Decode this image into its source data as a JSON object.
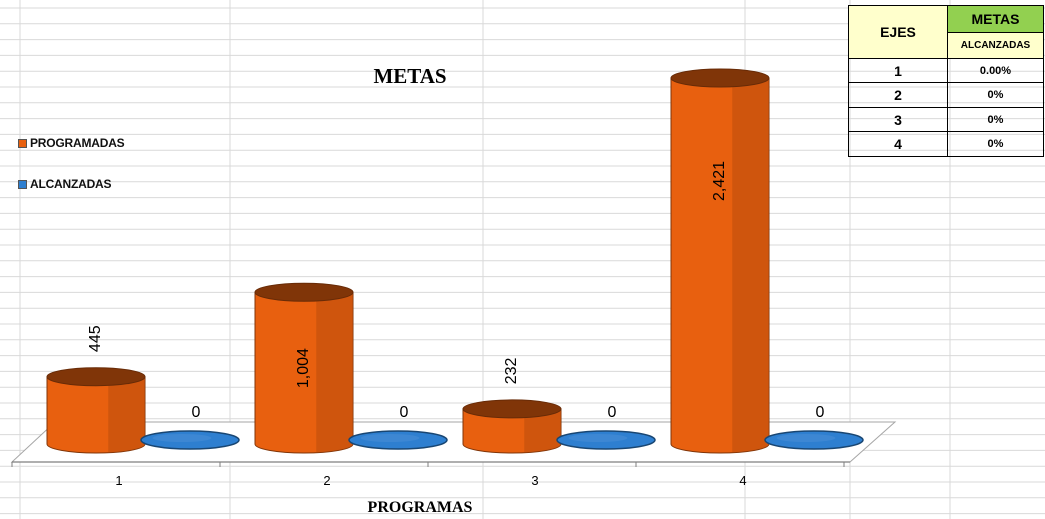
{
  "chart_data": {
    "type": "bar",
    "title": "METAS",
    "xlabel": "PROGRAMAS",
    "categories": [
      "1",
      "2",
      "3",
      "4"
    ],
    "series": [
      {
        "name": "PROGRAMADAS",
        "values": [
          445,
          1004,
          232,
          2421
        ],
        "data_labels": [
          "445",
          "1,004",
          "232",
          "2,421"
        ],
        "color": "#e8600f"
      },
      {
        "name": "ALCANZADAS",
        "values": [
          0,
          0,
          0,
          0
        ],
        "data_labels": [
          "0",
          "0",
          "0",
          "0"
        ],
        "color": "#2e7fd0"
      }
    ],
    "ylim": [
      0,
      2421
    ],
    "legend_position": "left",
    "bar_style": "3d-cylinder"
  },
  "table": {
    "header_axis": "EJES",
    "header_goals": "METAS",
    "header_sub": "ALCANZADAS",
    "rows": [
      {
        "axis": "1",
        "value": "0.00%"
      },
      {
        "axis": "2",
        "value": "0%"
      },
      {
        "axis": "3",
        "value": "0%"
      },
      {
        "axis": "4",
        "value": "0%"
      }
    ],
    "colors": {
      "header_axis_bg": "#ffffcc",
      "header_goals_bg": "#92d050"
    }
  }
}
